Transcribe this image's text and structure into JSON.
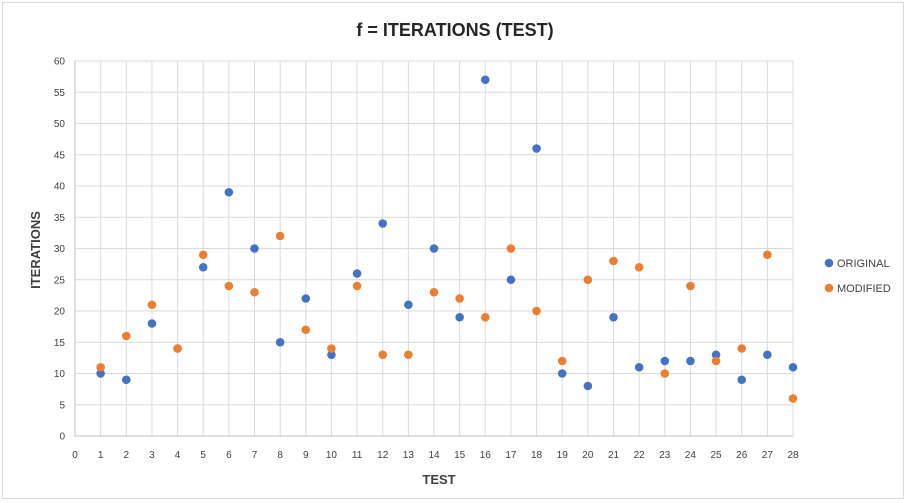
{
  "chart_data": {
    "type": "scatter",
    "title": "f = ITERATIONS (TEST)",
    "xlabel": "TEST",
    "ylabel": "ITERATIONS",
    "xlim": [
      0,
      28
    ],
    "ylim": [
      0,
      60
    ],
    "xticks": [
      0,
      1,
      2,
      3,
      4,
      5,
      6,
      7,
      8,
      9,
      10,
      11,
      12,
      13,
      14,
      15,
      16,
      17,
      18,
      19,
      20,
      21,
      22,
      23,
      24,
      25,
      26,
      27,
      28
    ],
    "yticks": [
      0,
      5,
      10,
      15,
      20,
      25,
      30,
      35,
      40,
      45,
      50,
      55,
      60
    ],
    "grid": true,
    "legend_position": "right",
    "series": [
      {
        "name": "ORIGINAL",
        "color": "#4472C4",
        "x": [
          1,
          2,
          3,
          4,
          5,
          6,
          7,
          8,
          9,
          10,
          11,
          12,
          13,
          14,
          15,
          16,
          17,
          18,
          19,
          20,
          21,
          22,
          23,
          24,
          25,
          26,
          27,
          28
        ],
        "y": [
          10,
          9,
          18,
          14,
          27,
          39,
          30,
          15,
          22,
          13,
          26,
          34,
          21,
          30,
          19,
          57,
          25,
          46,
          10,
          8,
          19,
          11,
          12,
          12,
          13,
          9,
          13,
          11
        ]
      },
      {
        "name": "MODIFIED",
        "color": "#ED7D31",
        "x": [
          1,
          2,
          3,
          4,
          5,
          6,
          7,
          8,
          9,
          10,
          11,
          12,
          13,
          14,
          15,
          16,
          17,
          18,
          19,
          20,
          21,
          22,
          23,
          24,
          25,
          26,
          27,
          28
        ],
        "y": [
          11,
          16,
          21,
          14,
          29,
          24,
          23,
          32,
          17,
          14,
          24,
          13,
          13,
          23,
          22,
          19,
          30,
          20,
          12,
          25,
          28,
          27,
          10,
          24,
          12,
          14,
          29,
          6
        ]
      }
    ]
  }
}
